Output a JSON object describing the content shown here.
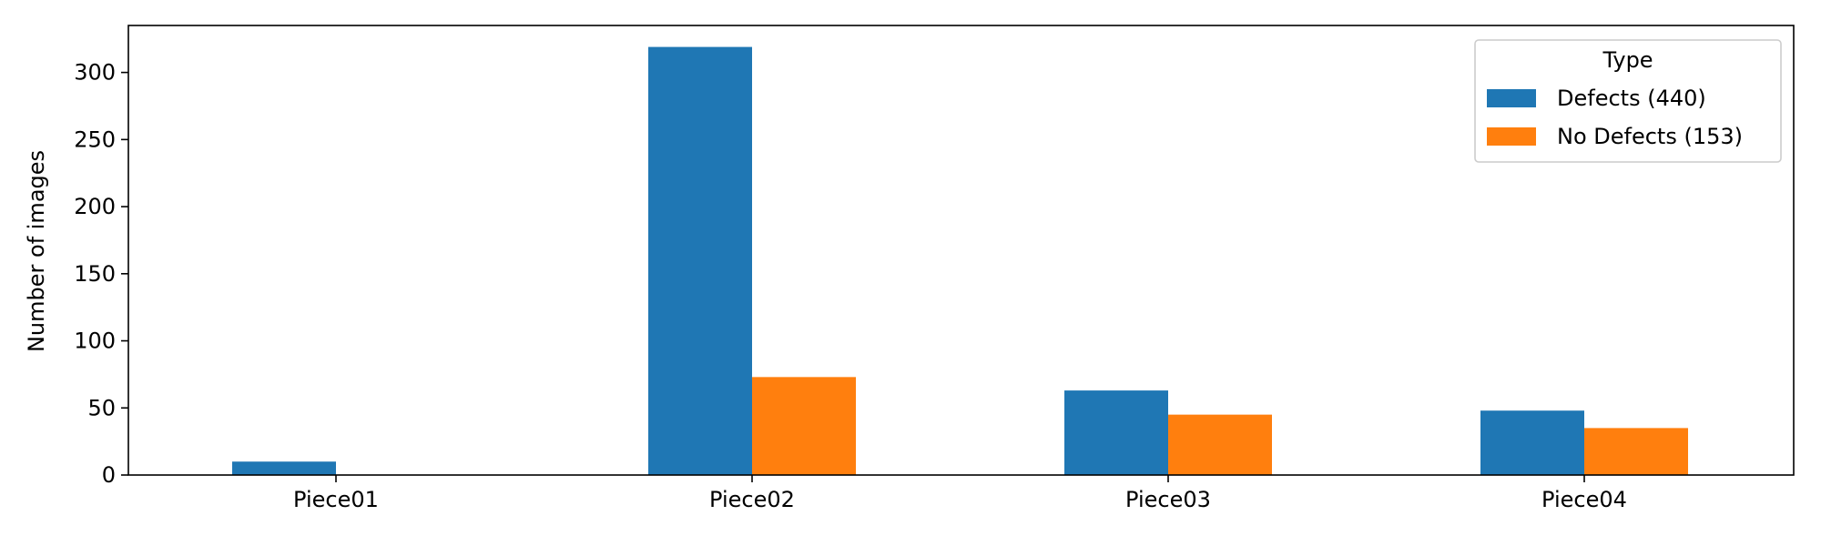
{
  "chart_data": {
    "type": "bar",
    "categories": [
      "Piece01",
      "Piece02",
      "Piece03",
      "Piece04"
    ],
    "series": [
      {
        "name": "Defects (440)",
        "values": [
          10,
          319,
          63,
          48
        ],
        "color": "#1f77b4"
      },
      {
        "name": "No Defects (153)",
        "values": [
          0,
          73,
          45,
          35
        ],
        "color": "#ff7f0e"
      }
    ],
    "title": "",
    "xlabel": "",
    "ylabel": "Number of images",
    "ylim": [
      0,
      335
    ],
    "yticks": [
      0,
      50,
      100,
      150,
      200,
      250,
      300
    ],
    "grid": false,
    "legend": {
      "title": "Type",
      "placement": "top-right"
    }
  }
}
